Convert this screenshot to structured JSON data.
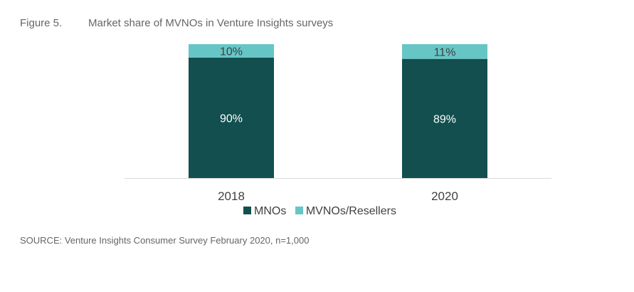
{
  "figure_number": "Figure 5.",
  "chart_data": {
    "type": "bar",
    "stacked": true,
    "title": "Market share of MVNOs in Venture Insights surveys",
    "categories": [
      "2018",
      "2020"
    ],
    "series": [
      {
        "name": "MNOs",
        "values": [
          90,
          89
        ],
        "labels": [
          "90%",
          "89%"
        ],
        "color": "#134f4f"
      },
      {
        "name": "MVNOs/Resellers",
        "values": [
          10,
          11
        ],
        "labels": [
          "10%",
          "11%"
        ],
        "color": "#66c6c6"
      }
    ],
    "ylim": [
      0,
      100
    ],
    "unit": "%",
    "grid": false,
    "legend": "bottom"
  },
  "source": "SOURCE: Venture Insights Consumer Survey February 2020, n=1,000"
}
